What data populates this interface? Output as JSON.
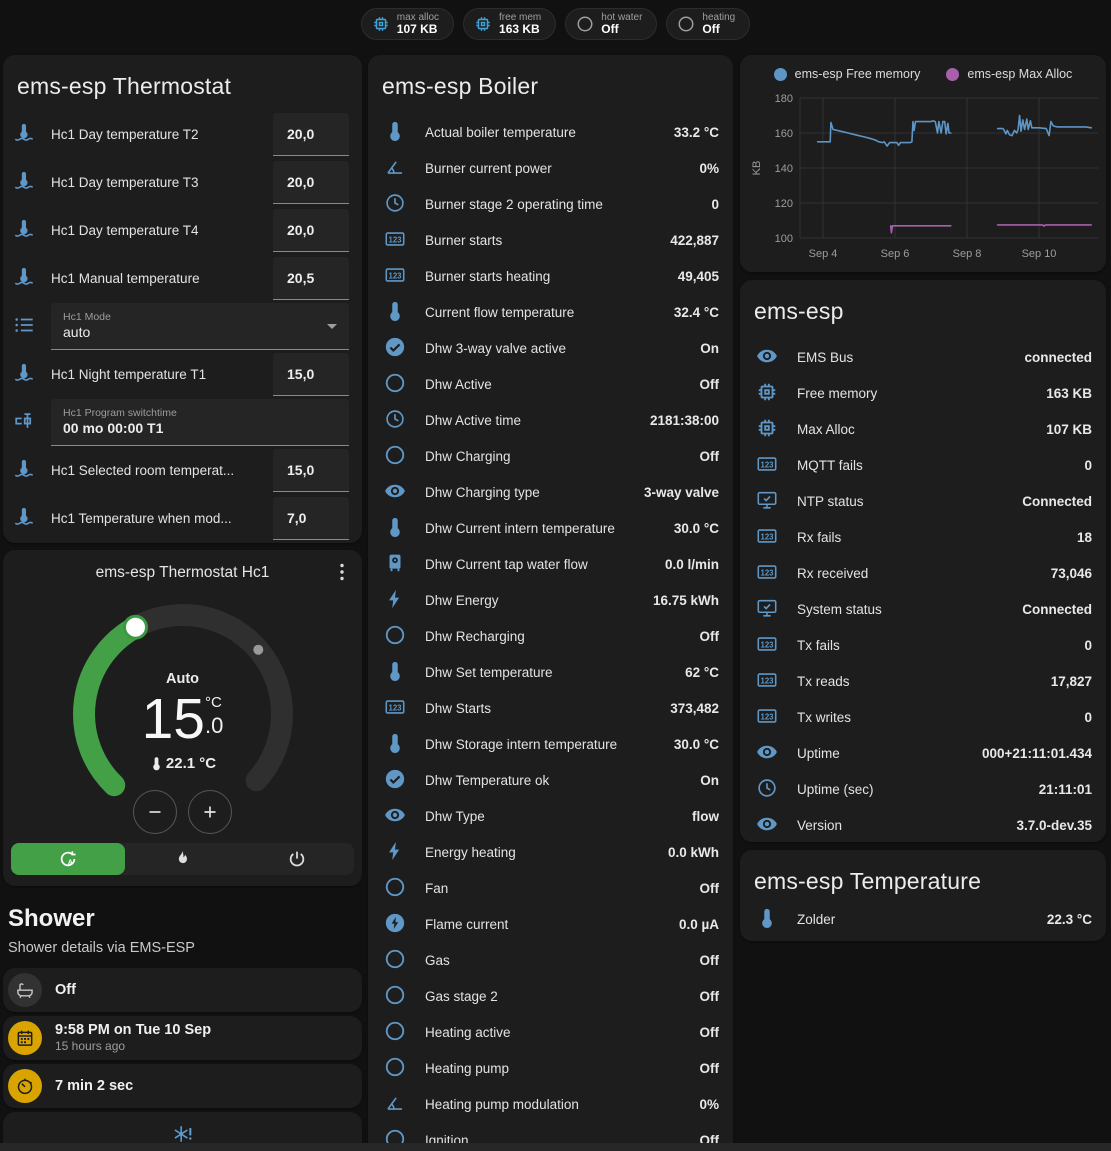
{
  "header_chips": [
    {
      "label": "max alloc",
      "value": "107 KB",
      "icon": "memory",
      "icon_color": "#3fa4db"
    },
    {
      "label": "free mem",
      "value": "163 KB",
      "icon": "memory",
      "icon_color": "#3fa4db"
    },
    {
      "label": "hot water",
      "value": "Off",
      "icon": "circle",
      "icon_color": "#9e9e9e"
    },
    {
      "label": "heating",
      "value": "Off",
      "icon": "circle",
      "icon_color": "#9e9e9e"
    }
  ],
  "thermostat_card": {
    "title": "ems-esp Thermostat",
    "rows": [
      {
        "type": "number",
        "icon": "thermometer-water",
        "label": "Hc1 Day temperature T2",
        "value": "20,0"
      },
      {
        "type": "number",
        "icon": "thermometer-water",
        "label": "Hc1 Day temperature T3",
        "value": "20,0"
      },
      {
        "type": "number",
        "icon": "thermometer-water",
        "label": "Hc1 Day temperature T4",
        "value": "20,0"
      },
      {
        "type": "number",
        "icon": "thermometer-water",
        "label": "Hc1 Manual temperature",
        "value": "20,5"
      },
      {
        "type": "select",
        "icon": "list",
        "label": "Hc1 Mode",
        "value": "auto"
      },
      {
        "type": "number",
        "icon": "thermometer-water",
        "label": "Hc1 Night temperature T1",
        "value": "15,0"
      },
      {
        "type": "text",
        "icon": "valve",
        "label": "Hc1 Program switchtime",
        "value": "00 mo 00:00 T1"
      },
      {
        "type": "number",
        "icon": "thermometer-water",
        "label": "Hc1 Selected room temperat...",
        "value": "15,0"
      },
      {
        "type": "number",
        "icon": "thermometer-water",
        "label": "Hc1 Temperature when mod...",
        "value": "7,0"
      }
    ]
  },
  "hc1_card": {
    "title": "ems-esp Thermostat Hc1",
    "mode_label": "Auto",
    "target_int": "15",
    "target_frac": ".0",
    "unit": "°C",
    "current_temp": "22.1 °C",
    "accent": "#43a047",
    "modes": [
      {
        "icon": "auto",
        "active": true
      },
      {
        "icon": "fire",
        "active": false
      },
      {
        "icon": "power",
        "active": false
      }
    ]
  },
  "shower": {
    "title": "Shower",
    "subtitle": "Shower details via EMS-ESP",
    "items": [
      {
        "icon": "bathtub",
        "icon_bg": "#323232",
        "icon_color": "#c8c8c8",
        "primary": "Off",
        "secondary": ""
      },
      {
        "icon": "calendar",
        "icon_bg": "#d9a400",
        "icon_color": "#1d1d1d",
        "primary": "9:58 PM on Tue 10 Sep",
        "secondary": "15 hours ago"
      },
      {
        "icon": "timer",
        "icon_bg": "#d9a400",
        "icon_color": "#1d1d1d",
        "primary": "7 min 2 sec",
        "secondary": ""
      },
      {
        "icon": "snowflake-alert",
        "icon_bg": "",
        "icon_color": "#5c9fd4",
        "primary": "",
        "secondary": "",
        "centered": true
      }
    ]
  },
  "boiler_card": {
    "title": "ems-esp Boiler",
    "rows": [
      {
        "icon": "thermometer",
        "label": "Actual boiler temperature",
        "value": "33.2 °C"
      },
      {
        "icon": "angle",
        "label": "Burner current power",
        "value": "0%"
      },
      {
        "icon": "clock",
        "label": "Burner stage 2 operating time",
        "value": "0"
      },
      {
        "icon": "counter",
        "label": "Burner starts",
        "value": "422,887"
      },
      {
        "icon": "counter",
        "label": "Burner starts heating",
        "value": "49,405"
      },
      {
        "icon": "thermometer",
        "label": "Current flow temperature",
        "value": "32.4 °C"
      },
      {
        "icon": "check-circle",
        "label": "Dhw 3-way valve active",
        "value": "On"
      },
      {
        "icon": "circle",
        "label": "Dhw Active",
        "value": "Off"
      },
      {
        "icon": "clock",
        "label": "Dhw Active time",
        "value": "2181:38:00"
      },
      {
        "icon": "circle",
        "label": "Dhw Charging",
        "value": "Off"
      },
      {
        "icon": "eye",
        "label": "Dhw Charging type",
        "value": "3-way valve"
      },
      {
        "icon": "thermometer",
        "label": "Dhw Current intern temperature",
        "value": "30.0 °C"
      },
      {
        "icon": "water-boiler",
        "label": "Dhw Current tap water flow",
        "value": "0.0 l/min"
      },
      {
        "icon": "flash",
        "label": "Dhw Energy",
        "value": "16.75 kWh"
      },
      {
        "icon": "circle",
        "label": "Dhw Recharging",
        "value": "Off"
      },
      {
        "icon": "thermometer",
        "label": "Dhw Set temperature",
        "value": "62 °C"
      },
      {
        "icon": "counter",
        "label": "Dhw Starts",
        "value": "373,482"
      },
      {
        "icon": "thermometer",
        "label": "Dhw Storage intern temperature",
        "value": "30.0 °C"
      },
      {
        "icon": "check-circle",
        "label": "Dhw Temperature ok",
        "value": "On"
      },
      {
        "icon": "eye",
        "label": "Dhw Type",
        "value": "flow"
      },
      {
        "icon": "flash",
        "label": "Energy heating",
        "value": "0.0 kWh"
      },
      {
        "icon": "circle",
        "label": "Fan",
        "value": "Off"
      },
      {
        "icon": "flash-circle",
        "label": "Flame current",
        "value": "0.0 µA"
      },
      {
        "icon": "circle",
        "label": "Gas",
        "value": "Off"
      },
      {
        "icon": "circle",
        "label": "Gas stage 2",
        "value": "Off"
      },
      {
        "icon": "circle",
        "label": "Heating active",
        "value": "Off"
      },
      {
        "icon": "circle",
        "label": "Heating pump",
        "value": "Off"
      },
      {
        "icon": "angle",
        "label": "Heating pump modulation",
        "value": "0%"
      },
      {
        "icon": "circle",
        "label": "Ignition",
        "value": "Off"
      }
    ]
  },
  "chart_data": {
    "type": "line",
    "title": "",
    "ylabel": "KB",
    "ylim": [
      95,
      185
    ],
    "yticks": [
      100,
      120,
      140,
      160,
      180
    ],
    "xticks": [
      {
        "day": 4,
        "label": "Sep 4"
      },
      {
        "day": 6,
        "label": "Sep 6"
      },
      {
        "day": 8,
        "label": "Sep 8"
      },
      {
        "day": 10,
        "label": "Sep 10"
      }
    ],
    "grid": true,
    "legend_position": "top",
    "series": [
      {
        "name": "ems-esp Free memory",
        "color": "#5e95c5",
        "segments": [
          [
            [
              3.85,
              155
            ],
            [
              4.2,
              155
            ],
            [
              4.22,
              166
            ],
            [
              4.28,
              162
            ],
            [
              4.5,
              161
            ],
            [
              4.7,
              160
            ],
            [
              4.9,
              159
            ],
            [
              5.1,
              158
            ],
            [
              5.3,
              157
            ],
            [
              5.45,
              156
            ],
            [
              5.55,
              155
            ],
            [
              5.65,
              154.5
            ],
            [
              5.7,
              155
            ],
            [
              5.78,
              152.5
            ],
            [
              5.85,
              154.5
            ],
            [
              6.05,
              154.5
            ],
            [
              6.1,
              153
            ],
            [
              6.15,
              154.5
            ],
            [
              6.42,
              154.5
            ],
            [
              6.47,
              155
            ],
            [
              6.5,
              166.5
            ],
            [
              6.53,
              161.5
            ],
            [
              6.57,
              166.5
            ],
            [
              7.0,
              166.5
            ],
            [
              7.05,
              167
            ],
            [
              7.12,
              166.5
            ],
            [
              7.18,
              160
            ],
            [
              7.22,
              166.5
            ],
            [
              7.28,
              160
            ],
            [
              7.33,
              166.5
            ],
            [
              7.38,
              166.5
            ],
            [
              7.42,
              159.5
            ],
            [
              7.47,
              165.5
            ],
            [
              7.5,
              160
            ],
            [
              7.55,
              160
            ]
          ],
          [
            [
              8.85,
              162.5
            ],
            [
              9.0,
              162.5
            ],
            [
              9.02,
              162
            ],
            [
              9.08,
              159.5
            ],
            [
              9.12,
              161.5
            ],
            [
              9.18,
              159
            ],
            [
              9.25,
              158.5
            ],
            [
              9.32,
              161.5
            ],
            [
              9.38,
              160
            ],
            [
              9.42,
              162
            ],
            [
              9.46,
              170
            ],
            [
              9.5,
              161
            ],
            [
              9.55,
              167.5
            ],
            [
              9.6,
              162
            ],
            [
              9.66,
              168
            ],
            [
              9.7,
              162
            ],
            [
              9.76,
              167
            ],
            [
              9.8,
              163
            ],
            [
              10.0,
              163
            ],
            [
              10.2,
              162.5
            ],
            [
              10.28,
              158.5
            ],
            [
              10.33,
              166.5
            ],
            [
              10.4,
              164
            ],
            [
              10.5,
              163.5
            ],
            [
              10.9,
              163.5
            ],
            [
              11.3,
              163.5
            ],
            [
              11.45,
              163
            ]
          ]
        ]
      },
      {
        "name": "ems-esp Max Alloc",
        "color": "#a95fab",
        "segments": [
          [
            [
              5.88,
              107
            ],
            [
              5.9,
              103
            ],
            [
              5.93,
              107
            ],
            [
              7.55,
              107
            ]
          ],
          [
            [
              8.85,
              107.5
            ],
            [
              10.1,
              107.5
            ],
            [
              10.14,
              106.8
            ],
            [
              10.18,
              107.5
            ],
            [
              11.45,
              107.5
            ]
          ]
        ]
      }
    ]
  },
  "emsesp_card": {
    "title": "ems-esp",
    "rows": [
      {
        "icon": "eye",
        "label": "EMS Bus",
        "value": "connected"
      },
      {
        "icon": "memory",
        "label": "Free memory",
        "value": "163 KB"
      },
      {
        "icon": "memory",
        "label": "Max Alloc",
        "value": "107 KB"
      },
      {
        "icon": "counter",
        "label": "MQTT fails",
        "value": "0"
      },
      {
        "icon": "monitor-check",
        "label": "NTP status",
        "value": "Connected"
      },
      {
        "icon": "counter",
        "label": "Rx fails",
        "value": "18"
      },
      {
        "icon": "counter",
        "label": "Rx received",
        "value": "73,046"
      },
      {
        "icon": "monitor-check",
        "label": "System status",
        "value": "Connected"
      },
      {
        "icon": "counter",
        "label": "Tx fails",
        "value": "0"
      },
      {
        "icon": "counter",
        "label": "Tx reads",
        "value": "17,827"
      },
      {
        "icon": "counter",
        "label": "Tx writes",
        "value": "0"
      },
      {
        "icon": "eye",
        "label": "Uptime",
        "value": "000+21:11:01.434"
      },
      {
        "icon": "clock",
        "label": "Uptime (sec)",
        "value": "21:11:01"
      },
      {
        "icon": "eye",
        "label": "Version",
        "value": "3.7.0-dev.35"
      }
    ]
  },
  "temperature_card": {
    "title": "ems-esp Temperature",
    "rows": [
      {
        "icon": "thermometer",
        "label": "Zolder",
        "value": "22.3 °C"
      }
    ]
  },
  "colors": {
    "background": "#111111",
    "card": "#1d1d1d",
    "icon_blue": "#5f98c7",
    "accent_green": "#43a047",
    "amber": "#d9a400",
    "chip_blue": "#3fa4db"
  }
}
